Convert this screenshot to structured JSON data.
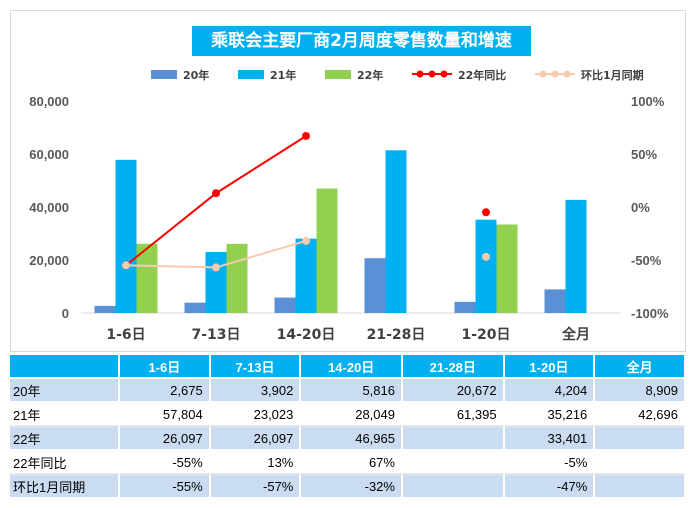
{
  "chart_data": {
    "type": "bar",
    "title": "乘联会主要厂商2月周度零售数量和增速",
    "categories": [
      "1-6日",
      "7-13日",
      "14-20日",
      "21-28日",
      "1-20日",
      "全月"
    ],
    "series": [
      {
        "name": "20年",
        "type": "bar",
        "values": [
          2675,
          3902,
          5816,
          20672,
          4204,
          8909
        ],
        "color": "#5b8fd6"
      },
      {
        "name": "21年",
        "type": "bar",
        "values": [
          57804,
          23023,
          28049,
          61395,
          35216,
          42696
        ],
        "color": "#00b0f0"
      },
      {
        "name": "22年",
        "type": "bar",
        "values": [
          26097,
          26097,
          46965,
          null,
          33401,
          null
        ],
        "color": "#92d050"
      },
      {
        "name": "22年同比",
        "type": "line",
        "axis": "right",
        "values": [
          -55,
          13,
          67,
          null,
          -5,
          null
        ],
        "color": "#ff0000"
      },
      {
        "name": "环比1月同期",
        "type": "line",
        "axis": "right",
        "values": [
          -55,
          -57,
          -32,
          null,
          -47,
          null
        ],
        "color": "#f8cbad"
      }
    ],
    "y_left": {
      "ylim": [
        0,
        80000
      ],
      "ticks": [
        "0",
        "20,000",
        "40,000",
        "60,000",
        "80,000"
      ]
    },
    "y_right": {
      "ylim": [
        -100,
        100
      ],
      "ticks": [
        "-100%",
        "-50%",
        "0%",
        "50%",
        "100%"
      ]
    },
    "legend_position": "top-center",
    "grid": false
  },
  "table": {
    "headers": [
      "",
      "1-6日",
      "7-13日",
      "14-20日",
      "21-28日",
      "1-20日",
      "全月"
    ],
    "rows": [
      {
        "label": "20年",
        "cells": [
          "2,675",
          "3,902",
          "5,816",
          "20,672",
          "4,204",
          "8,909"
        ]
      },
      {
        "label": "21年",
        "cells": [
          "57,804",
          "23,023",
          "28,049",
          "61,395",
          "35,216",
          "42,696"
        ]
      },
      {
        "label": "22年",
        "cells": [
          "26,097",
          "26,097",
          "46,965",
          "",
          "33,401",
          ""
        ]
      },
      {
        "label": "22年同比",
        "cells": [
          "-55%",
          "13%",
          "67%",
          "",
          "-5%",
          ""
        ]
      },
      {
        "label": "环比1月同期",
        "cells": [
          "-55%",
          "-57%",
          "-32%",
          "",
          "-47%",
          ""
        ]
      }
    ]
  }
}
